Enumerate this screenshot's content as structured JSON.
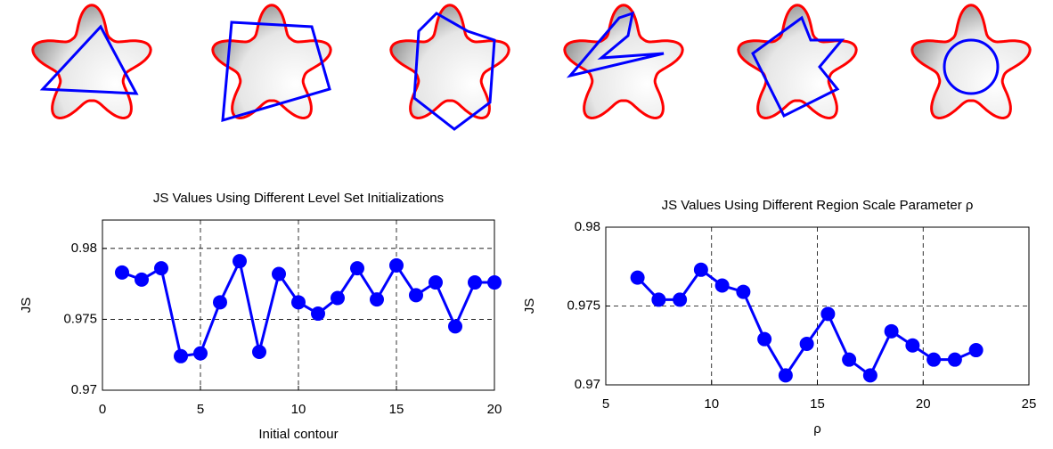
{
  "chart_data": [
    {
      "type": "line",
      "title": "JS Values Using Different Level Set Initializations",
      "x_label": "Initial contour",
      "y_label": "JS",
      "x": [
        1,
        2,
        3,
        4,
        5,
        6,
        7,
        8,
        9,
        10,
        11,
        12,
        13,
        14,
        15,
        16,
        17,
        18,
        19,
        20
      ],
      "series": [
        {
          "color": "#0000ff",
          "values": [
            0.9783,
            0.9778,
            0.9786,
            0.9724,
            0.9726,
            0.9762,
            0.9791,
            0.9727,
            0.9782,
            0.9762,
            0.9754,
            0.9765,
            0.9786,
            0.9764,
            0.9788,
            0.9767,
            0.9776,
            0.9745,
            0.9776,
            0.9776
          ]
        }
      ],
      "xlim": [
        0,
        20
      ],
      "xticks": [
        0,
        5,
        10,
        15,
        20
      ],
      "ylim": [
        0.97,
        0.982
      ],
      "yticks": [
        0.97,
        0.975,
        0.98
      ],
      "grid": true
    },
    {
      "type": "line",
      "title": "JS Values Using Different Region Scale Parameter ρ",
      "x_label": "ρ",
      "y_label": "JS",
      "x": [
        6.5,
        7.5,
        8.5,
        9.5,
        10.5,
        11.5,
        12.5,
        13.5,
        14.5,
        15.5,
        16.5,
        17.5,
        18.5,
        19.5,
        20.5,
        21.5,
        22.5
      ],
      "series": [
        {
          "color": "#0000ff",
          "values": [
            0.9768,
            0.9754,
            0.9754,
            0.9773,
            0.9763,
            0.9759,
            0.9729,
            0.9706,
            0.9726,
            0.9745,
            0.9716,
            0.9706,
            0.9734,
            0.9725,
            0.9716,
            0.9716,
            0.9722
          ]
        }
      ],
      "xlim": [
        5,
        25
      ],
      "xticks": [
        5,
        10,
        15,
        20,
        25
      ],
      "ylim": [
        0.97,
        0.98
      ],
      "yticks": [
        0.97,
        0.975,
        0.98
      ],
      "grid": true
    }
  ]
}
